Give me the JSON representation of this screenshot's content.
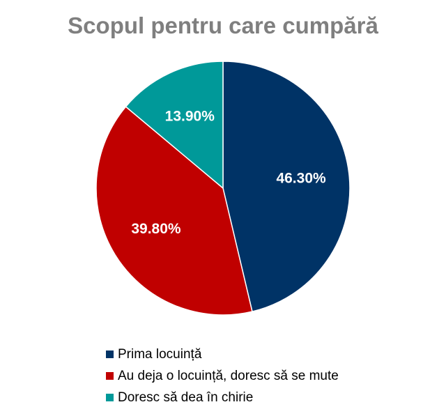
{
  "chart_data": {
    "type": "pie",
    "title": "Scopul pentru care cumpără",
    "slices": [
      {
        "label": "Prima locuință",
        "value": 46.3,
        "value_label": "46.30%",
        "color": "#003366"
      },
      {
        "label": "Au deja o locuință, doresc să se mute",
        "value": 39.8,
        "value_label": "39.80%",
        "color": "#c00000"
      },
      {
        "label": "Doresc să dea în chirie",
        "value": 13.9,
        "value_label": "13.90%",
        "color": "#009999"
      }
    ],
    "legend_position": "bottom"
  }
}
